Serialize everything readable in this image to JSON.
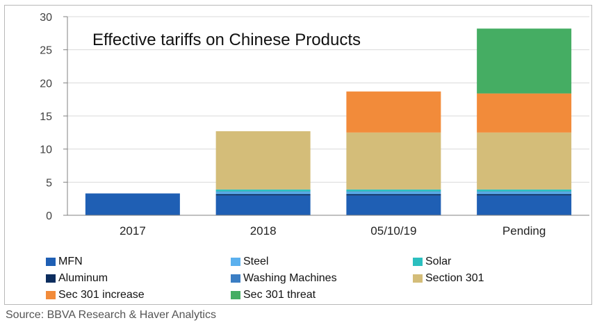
{
  "chart_data": {
    "type": "bar",
    "stacked": true,
    "title": "Effective tariffs on Chinese Products",
    "categories": [
      "2017",
      "2018",
      "05/10/19",
      "Pending"
    ],
    "ylim": [
      0,
      30
    ],
    "yticks": [
      0,
      5,
      10,
      15,
      20,
      25,
      30
    ],
    "grid": true,
    "legend_position": "bottom",
    "series": [
      {
        "name": "MFN",
        "color": "#1f5fb4",
        "values": [
          3.3,
          3.0,
          3.0,
          3.0
        ]
      },
      {
        "name": "Aluminum",
        "color": "#0c2d5e",
        "values": [
          0,
          0.2,
          0.2,
          0.2
        ]
      },
      {
        "name": "Steel",
        "color": "#5bb0ee",
        "values": [
          0,
          0.3,
          0.3,
          0.3
        ]
      },
      {
        "name": "Washing Machines",
        "color": "#3b7ec4",
        "values": [
          0,
          0.1,
          0.1,
          0.1
        ]
      },
      {
        "name": "Solar",
        "color": "#2bbfbf",
        "values": [
          0,
          0.3,
          0.3,
          0.3
        ]
      },
      {
        "name": "Section 301",
        "color": "#d4bd79",
        "values": [
          0,
          8.8,
          8.6,
          8.6
        ]
      },
      {
        "name": "Sec 301 increase",
        "color": "#f28b3a",
        "values": [
          0,
          0,
          6.2,
          5.9
        ]
      },
      {
        "name": "Sec 301 threat",
        "color": "#45ad63",
        "values": [
          0,
          0,
          0,
          9.8
        ]
      }
    ]
  },
  "source": "Source: BBVA Research & Haver Analytics"
}
